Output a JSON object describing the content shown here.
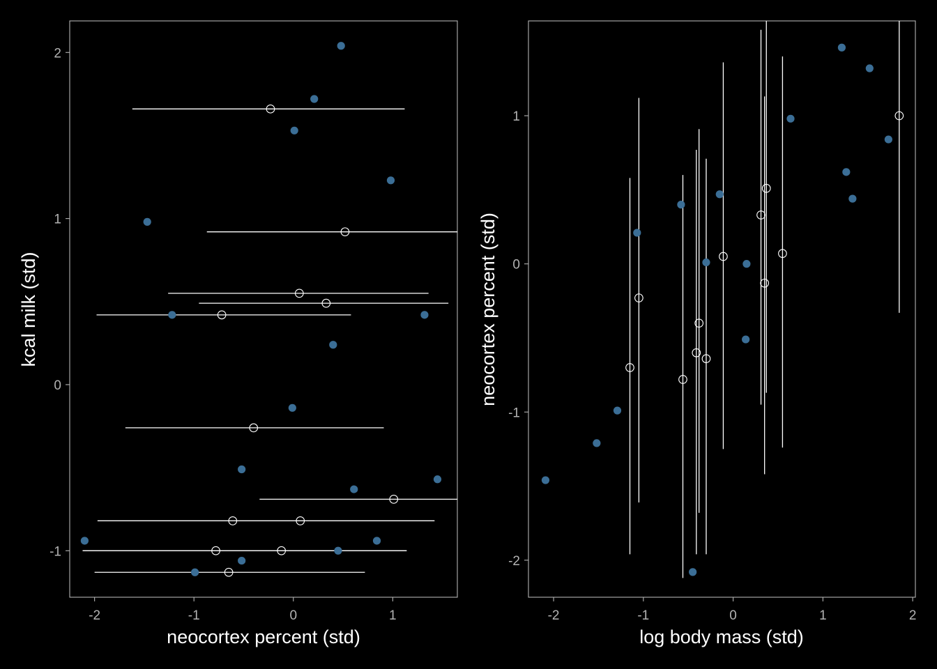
{
  "colors": {
    "background": "#000000",
    "observed_point": "#3b6e96",
    "imputed_point": "#ffffff",
    "interval_line": "#ffffff",
    "axis_text": "#b3b3b3",
    "title_text": "#ffffff"
  },
  "chart_data": [
    {
      "type": "scatter",
      "xlabel": "neocortex percent (std)",
      "ylabel": "kcal milk (std)",
      "xlim": [
        -2.25,
        1.65
      ],
      "ylim": [
        -1.28,
        2.19
      ],
      "xticks": [
        -2,
        -1,
        0,
        1
      ],
      "xtick_labels": [
        "-2",
        "-1",
        "0",
        "1"
      ],
      "yticks": [
        -1,
        0,
        1,
        2
      ],
      "ytick_labels": [
        "-1",
        "0",
        "1",
        "2"
      ],
      "grid": false,
      "series": [
        {
          "kind": "observed",
          "points": [
            {
              "x": 0.48,
              "y": 2.04
            },
            {
              "x": 0.21,
              "y": 1.72
            },
            {
              "x": 0.01,
              "y": 1.53
            },
            {
              "x": 0.98,
              "y": 1.23
            },
            {
              "x": -1.47,
              "y": 0.98
            },
            {
              "x": -1.22,
              "y": 0.42
            },
            {
              "x": 1.32,
              "y": 0.42
            },
            {
              "x": 0.4,
              "y": 0.24
            },
            {
              "x": -0.01,
              "y": -0.14
            },
            {
              "x": -0.52,
              "y": -0.51
            },
            {
              "x": 1.45,
              "y": -0.57
            },
            {
              "x": 0.61,
              "y": -0.63
            },
            {
              "x": -2.1,
              "y": -0.94
            },
            {
              "x": 0.84,
              "y": -0.94
            },
            {
              "x": 0.45,
              "y": -1.0
            },
            {
              "x": -0.52,
              "y": -1.06
            },
            {
              "x": -0.99,
              "y": -1.13
            }
          ]
        },
        {
          "kind": "imputed",
          "points": [
            {
              "x": -0.23,
              "y": 1.66,
              "lo": -1.62,
              "hi": 1.12
            },
            {
              "x": 0.52,
              "y": 0.92,
              "lo": -0.87,
              "hi": 1.65
            },
            {
              "x": 0.06,
              "y": 0.55,
              "lo": -1.26,
              "hi": 1.36
            },
            {
              "x": 0.33,
              "y": 0.49,
              "lo": -0.95,
              "hi": 1.56
            },
            {
              "x": -0.72,
              "y": 0.42,
              "lo": -1.98,
              "hi": 0.58
            },
            {
              "x": -0.4,
              "y": -0.26,
              "lo": -1.69,
              "hi": 0.91
            },
            {
              "x": 1.01,
              "y": -0.69,
              "lo": -0.34,
              "hi": 1.65
            },
            {
              "x": -0.61,
              "y": -0.82,
              "lo": -1.97,
              "hi": 1.42
            },
            {
              "x": 0.07,
              "y": -0.82,
              "lo": -1.97,
              "hi": 1.42
            },
            {
              "x": -0.78,
              "y": -1.0,
              "lo": -2.12,
              "hi": 1.14
            },
            {
              "x": -0.12,
              "y": -1.0,
              "lo": -2.12,
              "hi": 1.14
            },
            {
              "x": -0.65,
              "y": -1.13,
              "lo": -2.0,
              "hi": 0.72
            }
          ]
        }
      ]
    },
    {
      "type": "scatter",
      "xlabel": "log body mass (std)",
      "ylabel": "neocortex percent (std)",
      "xlim": [
        -2.28,
        2.03
      ],
      "ylim": [
        -2.25,
        1.64
      ],
      "xticks": [
        -2,
        -1,
        0,
        1,
        2
      ],
      "xtick_labels": [
        "-2",
        "-1",
        "0",
        "1",
        "2"
      ],
      "yticks": [
        -2,
        -1,
        0,
        1
      ],
      "ytick_labels": [
        "-2",
        "-1",
        "0",
        "1"
      ],
      "grid": false,
      "series": [
        {
          "kind": "observed",
          "points": [
            {
              "x": 1.21,
              "y": 1.46
            },
            {
              "x": 1.52,
              "y": 1.32
            },
            {
              "x": 0.64,
              "y": 0.98
            },
            {
              "x": 1.73,
              "y": 0.84
            },
            {
              "x": 1.26,
              "y": 0.62
            },
            {
              "x": 1.33,
              "y": 0.44
            },
            {
              "x": -0.15,
              "y": 0.47
            },
            {
              "x": -0.58,
              "y": 0.4
            },
            {
              "x": -1.07,
              "y": 0.21
            },
            {
              "x": -0.3,
              "y": 0.01
            },
            {
              "x": 0.15,
              "y": 0.0
            },
            {
              "x": 0.14,
              "y": -0.51
            },
            {
              "x": -1.29,
              "y": -0.99
            },
            {
              "x": -1.52,
              "y": -1.21
            },
            {
              "x": -2.09,
              "y": -1.46
            },
            {
              "x": -0.45,
              "y": -2.08
            }
          ]
        },
        {
          "kind": "imputed",
          "points": [
            {
              "x": 1.85,
              "y": 1.0,
              "lo": -0.33,
              "hi": 1.64
            },
            {
              "x": 0.37,
              "y": 0.51,
              "lo": -0.87,
              "hi": 1.64
            },
            {
              "x": 0.31,
              "y": 0.33,
              "lo": -0.95,
              "hi": 1.58
            },
            {
              "x": 0.55,
              "y": 0.07,
              "lo": -1.24,
              "hi": 1.4
            },
            {
              "x": -0.11,
              "y": 0.05,
              "lo": -1.25,
              "hi": 1.36
            },
            {
              "x": 0.35,
              "y": -0.13,
              "lo": -1.42,
              "hi": 1.13
            },
            {
              "x": -1.05,
              "y": -0.23,
              "lo": -1.61,
              "hi": 1.12
            },
            {
              "x": -0.38,
              "y": -0.4,
              "lo": -1.68,
              "hi": 0.91
            },
            {
              "x": -1.15,
              "y": -0.7,
              "lo": -1.96,
              "hi": 0.58
            },
            {
              "x": -0.41,
              "y": -0.6,
              "lo": -1.96,
              "hi": 0.77
            },
            {
              "x": -0.3,
              "y": -0.64,
              "lo": -1.96,
              "hi": 0.71
            },
            {
              "x": -0.56,
              "y": -0.78,
              "lo": -2.12,
              "hi": 0.6
            }
          ]
        }
      ]
    }
  ]
}
